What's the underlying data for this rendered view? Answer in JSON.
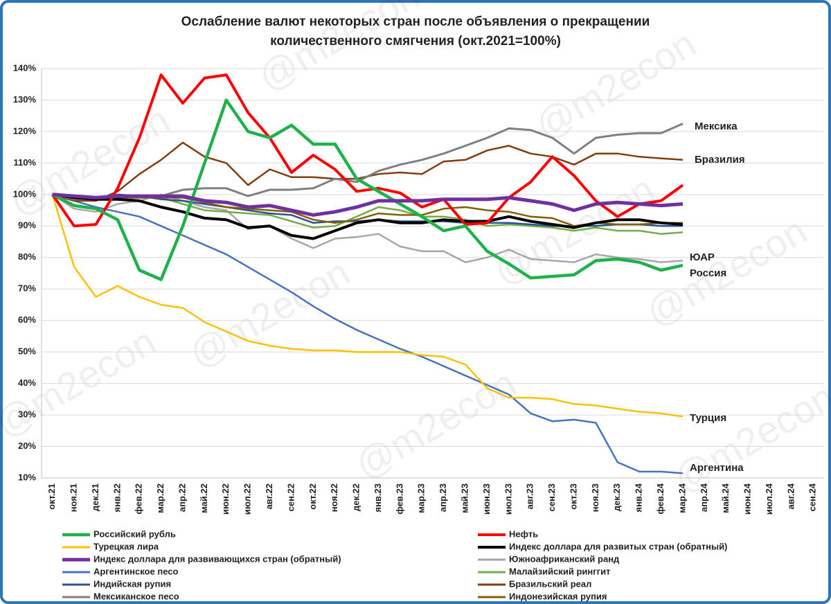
{
  "chart_data": {
    "type": "line",
    "title": [
      "Ослабление валют некоторых стран после объявления о прекращении",
      "количественного смягчения  (окт.2021=100%)"
    ],
    "watermark": "@m2econ",
    "categories": [
      "окт.21",
      "ноя.21",
      "дек.21",
      "янв.22",
      "фев.22",
      "мар.22",
      "апр.22",
      "май.22",
      "июн.22",
      "июл.22",
      "авг.22",
      "сен.22",
      "окт.22",
      "ноя.22",
      "дек.22",
      "янв.23",
      "фев.23",
      "мар.23",
      "апр.23",
      "май.23",
      "июн.23",
      "июл.23",
      "авг.23",
      "сен.23",
      "окт.23",
      "ноя.23",
      "дек.23",
      "янв.24",
      "фев.24",
      "мар.24",
      "апр.24",
      "май.24",
      "июн.24",
      "июл.24",
      "авг.24",
      "сен.24"
    ],
    "ylim": [
      10,
      140
    ],
    "yticks": [
      {
        "value": 10,
        "label": "10%"
      },
      {
        "value": 20,
        "label": "20%"
      },
      {
        "value": 30,
        "label": "30%"
      },
      {
        "value": 40,
        "label": "40%"
      },
      {
        "value": 50,
        "label": "50%"
      },
      {
        "value": 60,
        "label": "60%"
      },
      {
        "value": 70,
        "label": "70%"
      },
      {
        "value": 80,
        "label": "80%"
      },
      {
        "value": 90,
        "label": "90%"
      },
      {
        "value": 100,
        "label": "100%"
      },
      {
        "value": 110,
        "label": "110%"
      },
      {
        "value": 120,
        "label": "120%"
      },
      {
        "value": 130,
        "label": "130%"
      },
      {
        "value": 140,
        "label": "140%"
      }
    ],
    "grid": true,
    "series": [
      {
        "name": "Российский рубль",
        "color": "#1fb24a",
        "line_width": 4.5,
        "values": [
          100,
          96.5,
          95.5,
          92,
          76,
          73,
          90,
          110,
          130,
          120,
          118,
          122,
          116,
          116,
          105,
          101,
          97,
          93,
          88.5,
          90,
          82,
          78,
          73.5,
          74,
          74.5,
          79,
          79.5,
          78.5,
          76,
          77.5,
          null,
          null,
          null,
          null,
          null,
          null
        ]
      },
      {
        "name": "Нефть",
        "color": "#ff0000",
        "line_width": 4,
        "values": [
          100,
          90,
          90.5,
          102,
          118,
          138,
          129,
          137,
          138,
          126,
          118,
          107,
          112.5,
          108,
          101,
          102,
          100.5,
          96,
          98.5,
          90.5,
          91,
          99,
          104,
          112,
          106,
          98,
          93,
          97,
          98,
          103,
          null,
          null,
          null,
          null,
          null,
          null
        ]
      },
      {
        "name": "Турецкая лира",
        "color": "#ffc000",
        "line_width": 2.5,
        "values": [
          100,
          77,
          67.5,
          71,
          67.5,
          65,
          64,
          59.5,
          56.5,
          53.5,
          52,
          51,
          50.5,
          50.5,
          50,
          50,
          50,
          49,
          48.5,
          46,
          38.5,
          35.5,
          35.5,
          35,
          33.5,
          33,
          32,
          31,
          30.5,
          29.5,
          null,
          null,
          null,
          null,
          null,
          null
        ]
      },
      {
        "name": "Индекс доллара для развитых стран (обратный)",
        "color": "#000000",
        "line_width": 4,
        "values": [
          100,
          99,
          98.5,
          98.5,
          98,
          96,
          94.5,
          92.5,
          92,
          89.5,
          90,
          87,
          86,
          88.5,
          91,
          92,
          91,
          91,
          92,
          91.5,
          91.5,
          93,
          91.5,
          90.5,
          89.5,
          91,
          92,
          92,
          91,
          90.5,
          null,
          null,
          null,
          null,
          null,
          null
        ]
      },
      {
        "name": "Индекс доллара для развивающихся стран (обратный)",
        "color": "#7030a0",
        "line_width": 5,
        "values": [
          100,
          99.5,
          99,
          99.5,
          99.5,
          99.5,
          99.5,
          98,
          97.5,
          96,
          96.5,
          95,
          93.5,
          94.5,
          96,
          98,
          98,
          98,
          98.5,
          98.5,
          98.5,
          99,
          98,
          97,
          95,
          97,
          97.5,
          97,
          96.5,
          97,
          null,
          null,
          null,
          null,
          null,
          null
        ]
      },
      {
        "name": "Южноафриканский ранд",
        "color": "#a6a6a6",
        "line_width": 2.5,
        "values": [
          100,
          95.5,
          94.5,
          97,
          98,
          100,
          98,
          96,
          95,
          89,
          90,
          86,
          83,
          86,
          86.5,
          87.5,
          83.5,
          82,
          82,
          78.5,
          80,
          82.5,
          79.5,
          79,
          78.5,
          81,
          80,
          79.5,
          78.5,
          79,
          null,
          null,
          null,
          null,
          null,
          null
        ]
      },
      {
        "name": "Аргентинское песо",
        "color": "#4472c4",
        "line_width": 2.5,
        "values": [
          100,
          98,
          96,
          94.5,
          93,
          90,
          87,
          84,
          81,
          77,
          73,
          69,
          64.5,
          60.5,
          57,
          54,
          51,
          48.5,
          45.5,
          42.5,
          39.5,
          36.5,
          30.5,
          28,
          28.5,
          27.5,
          15,
          12,
          12,
          11.5,
          null,
          null,
          null,
          null,
          null,
          null
        ]
      },
      {
        "name": "Малайзийский ринггит",
        "color": "#70ad47",
        "line_width": 2.5,
        "values": [
          100,
          99,
          98.5,
          99,
          99,
          99,
          97,
          95,
          94.5,
          94,
          93.5,
          91.5,
          89.5,
          90,
          93,
          96,
          95,
          93,
          93,
          92,
          90,
          90.5,
          90,
          89.5,
          88.5,
          89.5,
          88.5,
          88.5,
          87.5,
          88,
          null,
          null,
          null,
          null,
          null,
          null
        ]
      },
      {
        "name": "Индийская рупия",
        "color": "#2f4f8f",
        "line_width": 2.5,
        "values": [
          100,
          99.5,
          99,
          100,
          99.5,
          98.5,
          98,
          97,
          96,
          95,
          94,
          93.5,
          91,
          91.5,
          91.5,
          92,
          91.5,
          91.5,
          91.5,
          91,
          91,
          91,
          90.5,
          90,
          90,
          90,
          90.5,
          90.5,
          90,
          90,
          null,
          null,
          null,
          null,
          null,
          null
        ]
      },
      {
        "name": "Бразильский реал",
        "color": "#843c0c",
        "line_width": 2.5,
        "values": [
          100,
          98,
          98,
          101,
          106.5,
          111,
          116.5,
          112,
          110,
          103,
          108,
          105.5,
          105.5,
          105,
          105,
          106.5,
          107,
          106.5,
          110.5,
          111,
          114,
          115.5,
          113,
          112,
          109.5,
          113,
          113,
          112,
          111.5,
          111,
          null,
          null,
          null,
          null,
          null,
          null
        ]
      },
      {
        "name": "Мексиканское песо",
        "color": "#7f7f7f",
        "line_width": 3,
        "values": [
          100,
          98.5,
          99,
          99.5,
          99.5,
          99.5,
          101.5,
          102,
          102,
          99.5,
          101.5,
          101.5,
          102,
          105,
          104,
          107.5,
          109.5,
          111,
          113,
          115.5,
          118,
          121,
          120.5,
          118,
          113,
          118,
          119,
          119.5,
          119.5,
          122.5,
          null,
          null,
          null,
          null,
          null,
          null
        ]
      },
      {
        "name": "Индонезийская рупия",
        "color": "#7f6000",
        "line_width": 2.5,
        "values": [
          100,
          99,
          99,
          99,
          99,
          99,
          99,
          97.5,
          96,
          95.5,
          95,
          94.5,
          92,
          91,
          92,
          94,
          93.5,
          93.5,
          95.5,
          96,
          95,
          94.5,
          93,
          92.5,
          90,
          91,
          90.5,
          90.5,
          91,
          91,
          null,
          null,
          null,
          null,
          null,
          null
        ]
      }
    ],
    "annotations": [
      "Мексика",
      "Бразилия",
      "ЮАР",
      "Россия",
      "Турция",
      "Аргентина"
    ]
  }
}
